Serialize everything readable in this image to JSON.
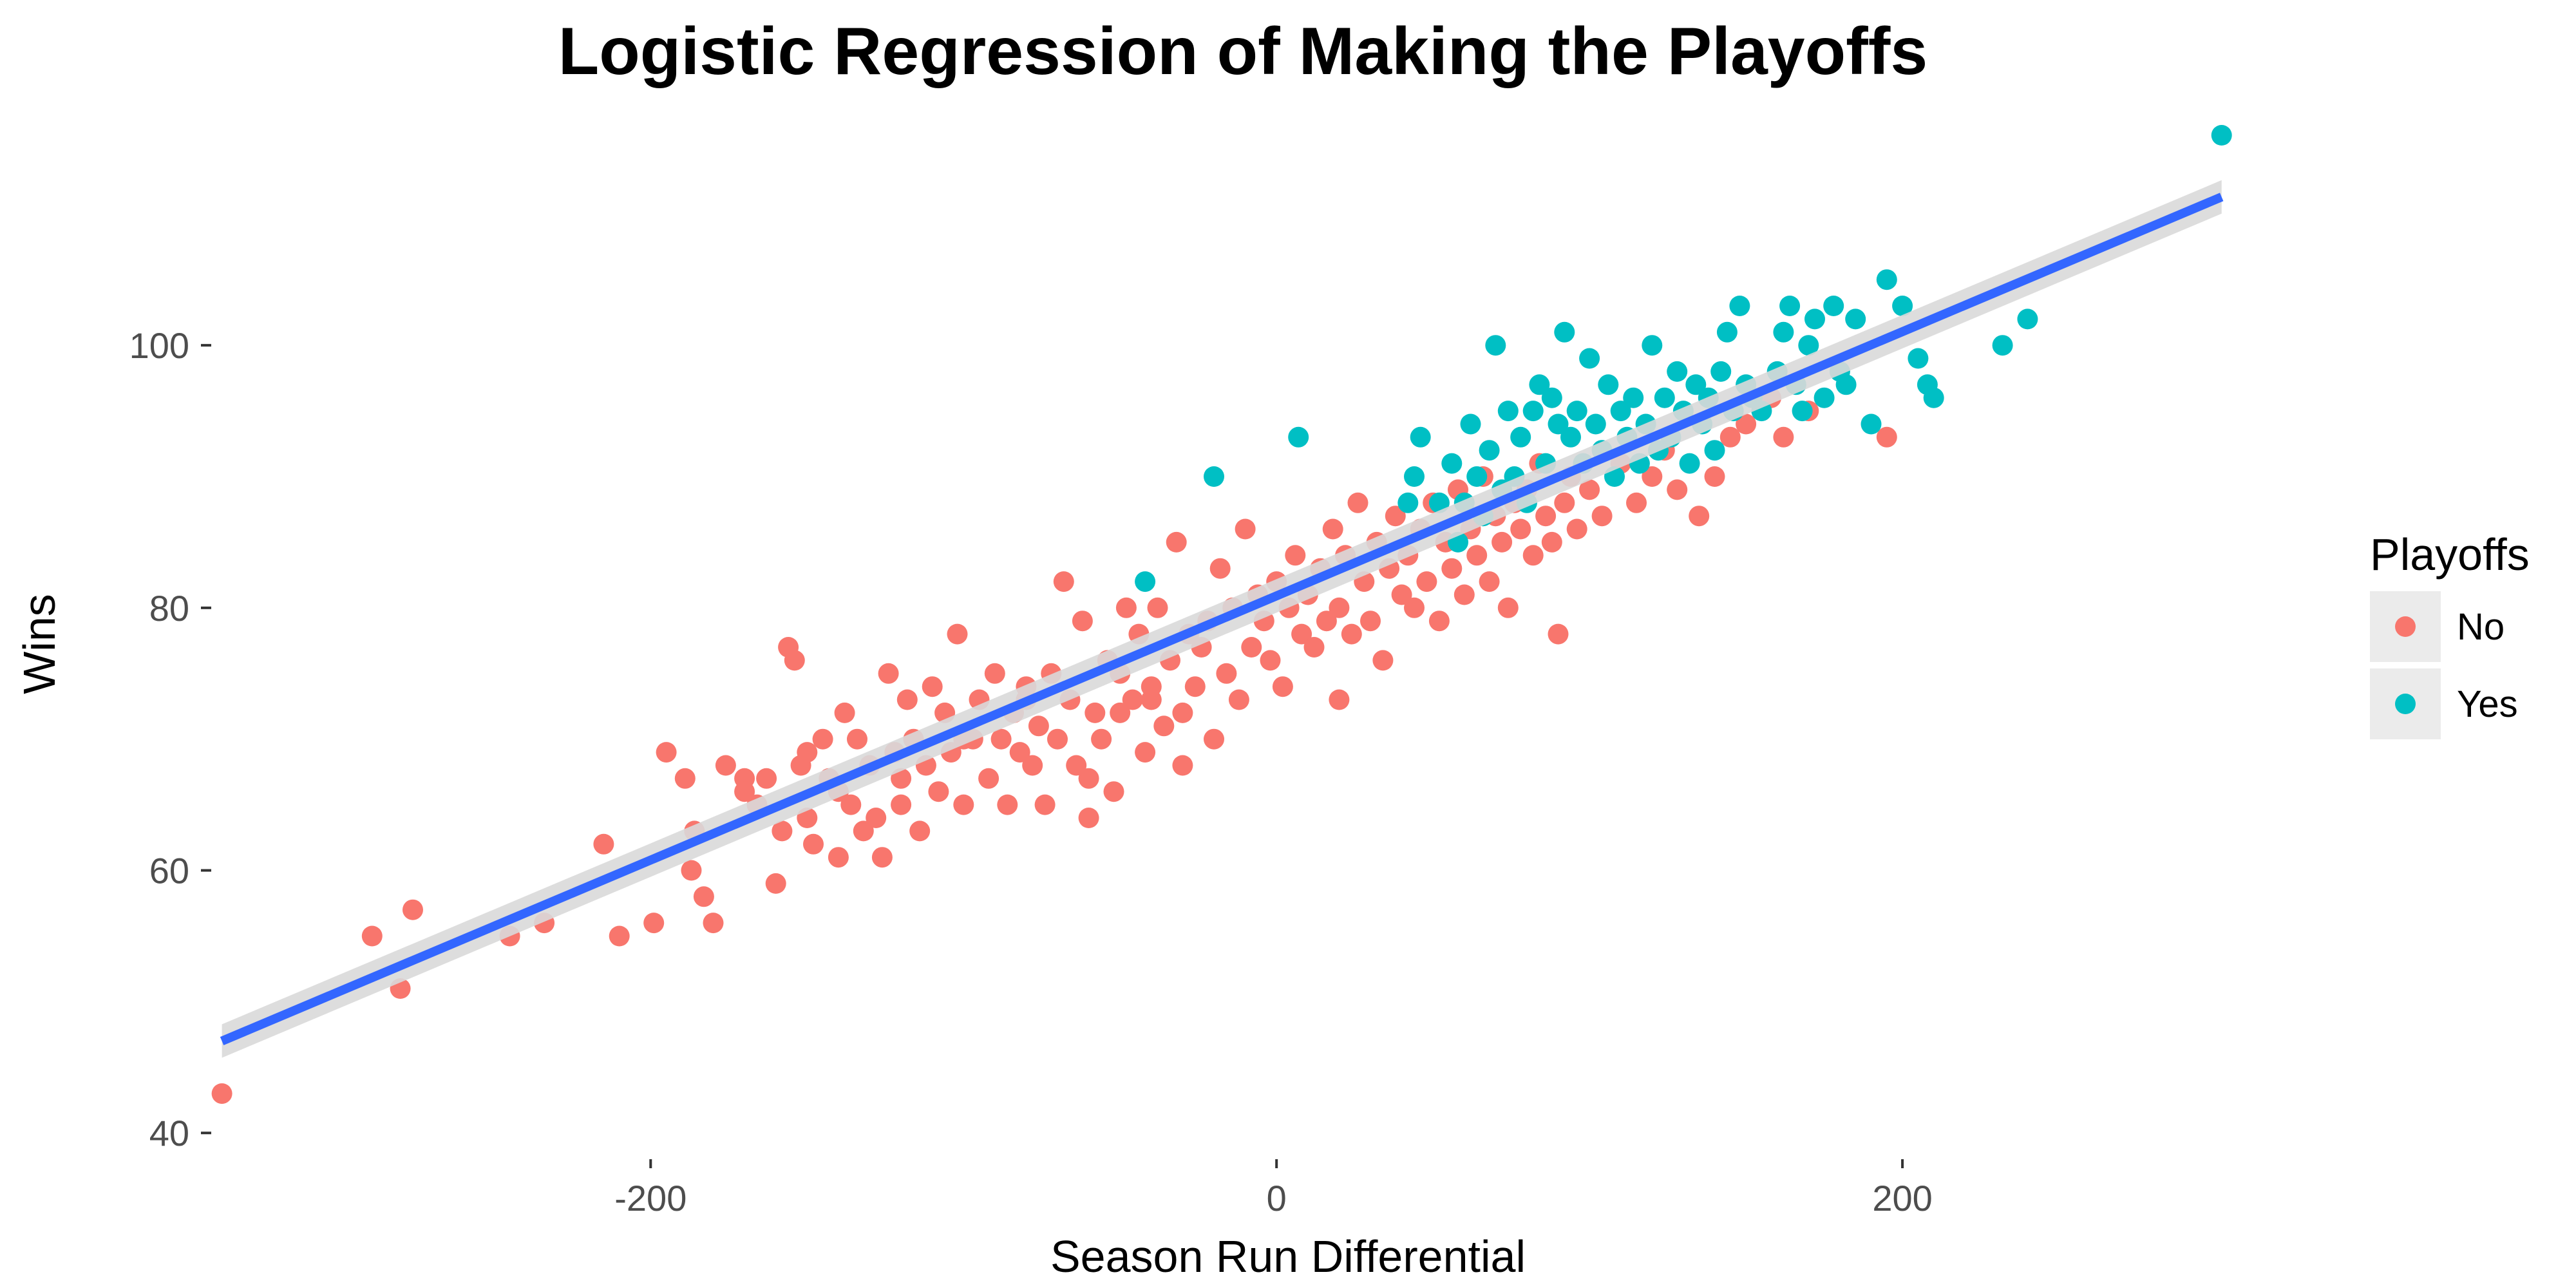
{
  "chart_data": {
    "type": "scatter",
    "title": "Logistic Regression of Making the Playoffs",
    "xlabel": "Season Run Differential",
    "ylabel": "Wins",
    "xlim": [
      -340,
      300
    ],
    "ylim": [
      38,
      116
    ],
    "x_ticks": [
      -200,
      0,
      200
    ],
    "y_ticks": [
      40,
      60,
      80,
      100
    ],
    "x_tick_labels": [
      "-200",
      "0",
      "200"
    ],
    "y_tick_labels": [
      "40",
      "60",
      "80",
      "100"
    ],
    "grid": false,
    "legend": {
      "title": "Playoffs",
      "position": "right"
    },
    "series": [
      {
        "name": "No",
        "color": "#F8766D",
        "points": [
          [
            -337,
            43
          ],
          [
            -289,
            55
          ],
          [
            -280,
            51
          ],
          [
            -276,
            57
          ],
          [
            -245,
            55
          ],
          [
            -234,
            56
          ],
          [
            -215,
            62
          ],
          [
            -210,
            55
          ],
          [
            -199,
            56
          ],
          [
            -195,
            69
          ],
          [
            -189,
            67
          ],
          [
            -187,
            60
          ],
          [
            -186,
            63
          ],
          [
            -183,
            58
          ],
          [
            -180,
            56
          ],
          [
            -176,
            68
          ],
          [
            -170,
            67
          ],
          [
            -166,
            65
          ],
          [
            -163,
            67
          ],
          [
            -160,
            59
          ],
          [
            -158,
            63
          ],
          [
            -156,
            77
          ],
          [
            -154,
            76
          ],
          [
            -152,
            68
          ],
          [
            -150,
            64
          ],
          [
            -148,
            62
          ],
          [
            -145,
            70
          ],
          [
            -143,
            67
          ],
          [
            -140,
            61
          ],
          [
            -138,
            72
          ],
          [
            -136,
            65
          ],
          [
            -134,
            70
          ],
          [
            -132,
            63
          ],
          [
            -130,
            68
          ],
          [
            -128,
            64
          ],
          [
            -126,
            61
          ],
          [
            -124,
            75
          ],
          [
            -122,
            69
          ],
          [
            -120,
            65
          ],
          [
            -118,
            73
          ],
          [
            -116,
            70
          ],
          [
            -114,
            63
          ],
          [
            -112,
            68
          ],
          [
            -110,
            74
          ],
          [
            -108,
            66
          ],
          [
            -106,
            72
          ],
          [
            -104,
            69
          ],
          [
            -102,
            78
          ],
          [
            -100,
            65
          ],
          [
            -97,
            70
          ],
          [
            -95,
            73
          ],
          [
            -92,
            67
          ],
          [
            -90,
            75
          ],
          [
            -88,
            70
          ],
          [
            -86,
            65
          ],
          [
            -84,
            72
          ],
          [
            -82,
            69
          ],
          [
            -80,
            74
          ],
          [
            -78,
            68
          ],
          [
            -76,
            71
          ],
          [
            -74,
            65
          ],
          [
            -72,
            75
          ],
          [
            -70,
            70
          ],
          [
            -68,
            82
          ],
          [
            -66,
            73
          ],
          [
            -64,
            68
          ],
          [
            -62,
            79
          ],
          [
            -60,
            64
          ],
          [
            -58,
            72
          ],
          [
            -56,
            70
          ],
          [
            -54,
            76
          ],
          [
            -52,
            66
          ],
          [
            -50,
            75
          ],
          [
            -48,
            80
          ],
          [
            -46,
            73
          ],
          [
            -44,
            78
          ],
          [
            -42,
            69
          ],
          [
            -40,
            74
          ],
          [
            -38,
            80
          ],
          [
            -36,
            71
          ],
          [
            -34,
            76
          ],
          [
            -32,
            85
          ],
          [
            -30,
            72
          ],
          [
            -28,
            78
          ],
          [
            -26,
            74
          ],
          [
            -24,
            77
          ],
          [
            -22,
            79
          ],
          [
            -20,
            70
          ],
          [
            -18,
            83
          ],
          [
            -16,
            75
          ],
          [
            -14,
            80
          ],
          [
            -12,
            73
          ],
          [
            -10,
            86
          ],
          [
            -8,
            77
          ],
          [
            -6,
            81
          ],
          [
            -4,
            79
          ],
          [
            -2,
            76
          ],
          [
            0,
            82
          ],
          [
            2,
            74
          ],
          [
            4,
            80
          ],
          [
            6,
            84
          ],
          [
            8,
            78
          ],
          [
            10,
            81
          ],
          [
            12,
            77
          ],
          [
            14,
            83
          ],
          [
            16,
            79
          ],
          [
            18,
            86
          ],
          [
            20,
            80
          ],
          [
            22,
            84
          ],
          [
            24,
            78
          ],
          [
            26,
            88
          ],
          [
            28,
            82
          ],
          [
            30,
            79
          ],
          [
            32,
            85
          ],
          [
            34,
            76
          ],
          [
            36,
            83
          ],
          [
            38,
            87
          ],
          [
            40,
            81
          ],
          [
            42,
            84
          ],
          [
            44,
            80
          ],
          [
            46,
            86
          ],
          [
            48,
            82
          ],
          [
            50,
            88
          ],
          [
            52,
            79
          ],
          [
            54,
            85
          ],
          [
            56,
            83
          ],
          [
            58,
            89
          ],
          [
            60,
            81
          ],
          [
            62,
            86
          ],
          [
            64,
            84
          ],
          [
            66,
            90
          ],
          [
            68,
            82
          ],
          [
            70,
            87
          ],
          [
            72,
            85
          ],
          [
            74,
            80
          ],
          [
            76,
            88
          ],
          [
            78,
            86
          ],
          [
            80,
            89
          ],
          [
            82,
            84
          ],
          [
            84,
            91
          ],
          [
            86,
            87
          ],
          [
            88,
            85
          ],
          [
            90,
            78
          ],
          [
            92,
            88
          ],
          [
            94,
            90
          ],
          [
            96,
            86
          ],
          [
            100,
            89
          ],
          [
            104,
            87
          ],
          [
            110,
            91
          ],
          [
            115,
            88
          ],
          [
            120,
            90
          ],
          [
            124,
            92
          ],
          [
            128,
            89
          ],
          [
            135,
            87
          ],
          [
            140,
            90
          ],
          [
            145,
            93
          ],
          [
            150,
            94
          ],
          [
            158,
            96
          ],
          [
            162,
            93
          ],
          [
            170,
            95
          ],
          [
            195,
            93
          ],
          [
            -30,
            68
          ],
          [
            -60,
            67
          ],
          [
            -100,
            70
          ],
          [
            -140,
            66
          ],
          [
            -120,
            67
          ],
          [
            -80,
            73
          ],
          [
            -40,
            73
          ],
          [
            20,
            73
          ],
          [
            -150,
            69
          ],
          [
            -170,
            66
          ],
          [
            -50,
            72
          ]
        ]
      },
      {
        "name": "Yes",
        "color": "#00BFC4",
        "points": [
          [
            -42,
            82
          ],
          [
            -20,
            90
          ],
          [
            7,
            93
          ],
          [
            42,
            88
          ],
          [
            44,
            90
          ],
          [
            46,
            93
          ],
          [
            52,
            88
          ],
          [
            56,
            91
          ],
          [
            58,
            85
          ],
          [
            60,
            88
          ],
          [
            62,
            94
          ],
          [
            64,
            90
          ],
          [
            66,
            87
          ],
          [
            68,
            92
          ],
          [
            70,
            100
          ],
          [
            72,
            89
          ],
          [
            74,
            95
          ],
          [
            76,
            90
          ],
          [
            78,
            93
          ],
          [
            80,
            88
          ],
          [
            82,
            95
          ],
          [
            84,
            97
          ],
          [
            86,
            91
          ],
          [
            88,
            96
          ],
          [
            90,
            94
          ],
          [
            92,
            101
          ],
          [
            94,
            93
          ],
          [
            96,
            95
          ],
          [
            98,
            91
          ],
          [
            100,
            99
          ],
          [
            102,
            94
          ],
          [
            104,
            92
          ],
          [
            106,
            97
          ],
          [
            108,
            90
          ],
          [
            110,
            95
          ],
          [
            112,
            93
          ],
          [
            114,
            96
          ],
          [
            116,
            91
          ],
          [
            118,
            94
          ],
          [
            120,
            100
          ],
          [
            122,
            92
          ],
          [
            124,
            96
          ],
          [
            126,
            93
          ],
          [
            128,
            98
          ],
          [
            130,
            95
          ],
          [
            132,
            91
          ],
          [
            134,
            97
          ],
          [
            136,
            94
          ],
          [
            138,
            96
          ],
          [
            140,
            92
          ],
          [
            142,
            98
          ],
          [
            144,
            101
          ],
          [
            146,
            95
          ],
          [
            148,
            103
          ],
          [
            150,
            97
          ],
          [
            152,
            96
          ],
          [
            155,
            95
          ],
          [
            160,
            98
          ],
          [
            162,
            101
          ],
          [
            164,
            103
          ],
          [
            166,
            97
          ],
          [
            168,
            95
          ],
          [
            170,
            100
          ],
          [
            172,
            102
          ],
          [
            175,
            96
          ],
          [
            178,
            103
          ],
          [
            180,
            98
          ],
          [
            182,
            97
          ],
          [
            185,
            102
          ],
          [
            190,
            94
          ],
          [
            195,
            105
          ],
          [
            200,
            103
          ],
          [
            205,
            99
          ],
          [
            208,
            97
          ],
          [
            210,
            96
          ],
          [
            232,
            100
          ],
          [
            240,
            102
          ],
          [
            302,
            116
          ]
        ]
      }
    ],
    "trend_line": {
      "x": [
        -337,
        302
      ],
      "y": [
        47.0,
        111.3
      ],
      "color": "#3366FF",
      "band_color": "#d9d9d9"
    }
  }
}
